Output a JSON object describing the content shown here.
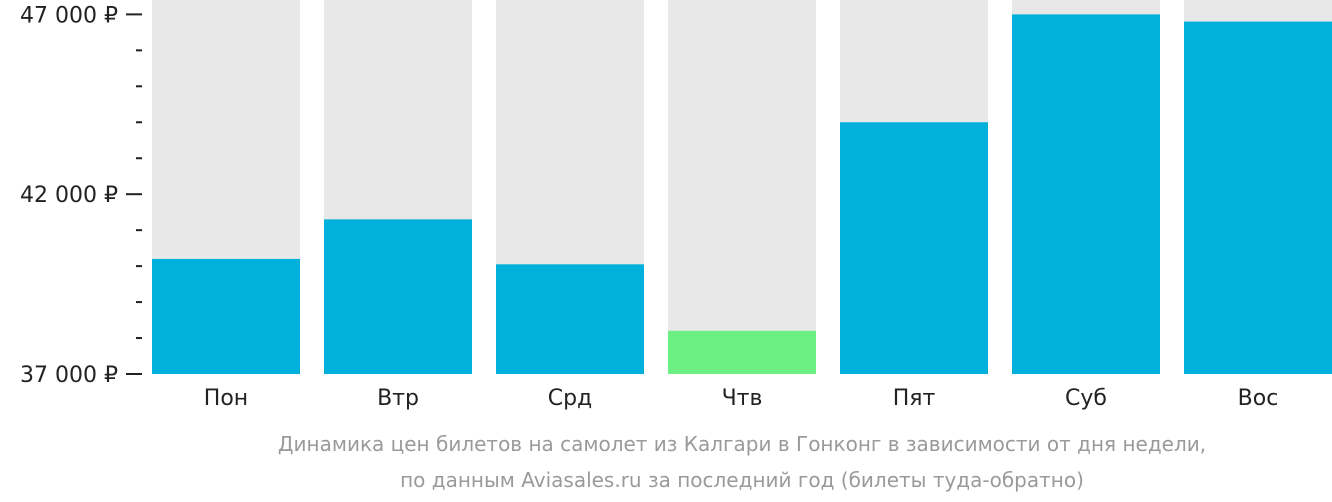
{
  "chart_data": {
    "type": "bar",
    "categories": [
      "Пон",
      "Втр",
      "Срд",
      "Чтв",
      "Пят",
      "Суб",
      "Вос"
    ],
    "values": [
      40200,
      41300,
      40050,
      38200,
      44000,
      47000,
      46800
    ],
    "ylim": [
      37000,
      47400
    ],
    "yticks": [
      37000,
      42000,
      47000
    ],
    "ytick_labels": [
      "37 000 ₽",
      "42 000 ₽",
      "47 000 ₽"
    ],
    "minor_tick_step": 1000,
    "bar_color": "#02b0dc",
    "min_bar_color": "#6cf083",
    "background_bar_color": "#e8e8e8",
    "caption_line1": "Динамика цен билетов на самолет из Калгари в Гонконг в зависимости от дня недели,",
    "caption_line2": "по данным Aviasales.ru за последний год (билеты туда-обратно)"
  }
}
